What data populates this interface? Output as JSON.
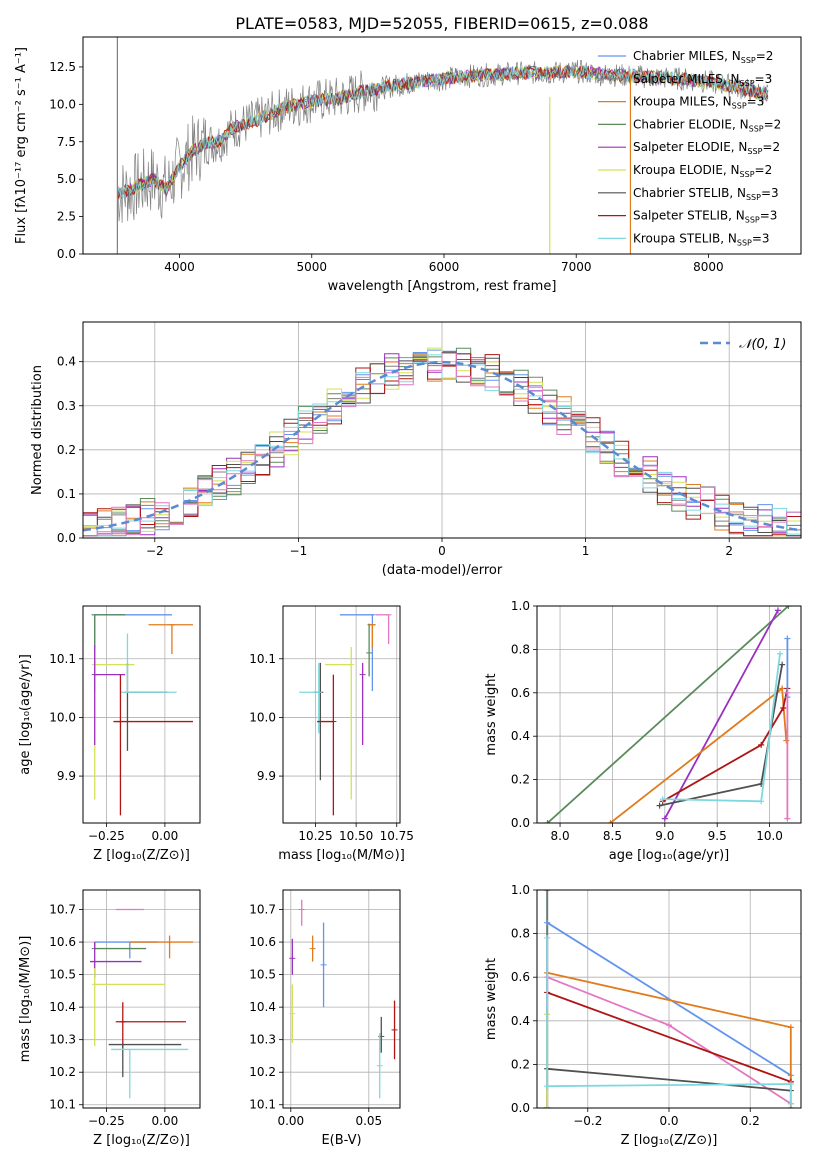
{
  "colors": {
    "chabrier_miles": "#6495ed",
    "salpeter_miles": "#808080",
    "kroupa_miles": "#e07b1e",
    "chabrier_elodie": "#5a8a5a",
    "salpeter_elodie": "#9b30c0",
    "kroupa_elodie": "#d4e05a",
    "chabrier_stelib": "#505050",
    "salpeter_stelib": "#b01515",
    "kroupa_stelib": "#7fd8e0",
    "pink": "#e377c2",
    "normal_curve": "#5b8bd0"
  },
  "chart_data": [
    {
      "id": "spectrum",
      "type": "line",
      "title": "PLATE=0583, MJD=52055, FIBERID=0615, z=0.088",
      "xlabel": "wavelength [Angstrom, rest frame]",
      "ylabel": "Flux [fλ10⁻¹⁷ erg cm⁻² s⁻¹ A⁻¹]",
      "xlim": [
        3270,
        8700
      ],
      "ylim": [
        0,
        14.5
      ],
      "xticks": [
        4000,
        5000,
        6000,
        7000,
        8000
      ],
      "xtick_labels": [
        "4000",
        "5000",
        "6000",
        "7000",
        "8000"
      ],
      "yticks": [
        0,
        2.5,
        5,
        7.5,
        10,
        12.5
      ],
      "ytick_labels": [
        "0.0",
        "2.5",
        "5.0",
        "7.5",
        "10.0",
        "12.5"
      ],
      "legend": "upper-right",
      "series": [
        {
          "name": "Chabrier MILES, N_SSP=2",
          "color": "#6495ed"
        },
        {
          "name": "Salpeter MILES, N_SSP=3",
          "color": "#808080"
        },
        {
          "name": "Kroupa MILES, N_SSP=3",
          "color": "#e07b1e"
        },
        {
          "name": "Chabrier ELODIE, N_SSP=2",
          "color": "#5a8a5a"
        },
        {
          "name": "Salpeter ELODIE, N_SSP=2",
          "color": "#9b30c0"
        },
        {
          "name": "Kroupa ELODIE, N_SSP=2",
          "color": "#d4e05a"
        },
        {
          "name": "Chabrier STELIB, N_SSP=3",
          "color": "#505050"
        },
        {
          "name": "Salpeter STELIB, N_SSP=3",
          "color": "#b01515"
        },
        {
          "name": "Kroupa STELIB, N_SSP=3",
          "color": "#7fd8e0"
        }
      ],
      "continuum": {
        "x": [
          3530,
          3600,
          3700,
          3800,
          3900,
          4000,
          4100,
          4200,
          4300,
          4400,
          4600,
          4800,
          5000,
          5200,
          5400,
          5600,
          5800,
          6000,
          6200,
          6400,
          6600,
          6800,
          7000,
          7200,
          7400,
          7600,
          7800,
          8000,
          8200,
          8450
        ],
        "y": [
          4.0,
          4.2,
          4.6,
          5.0,
          4.3,
          5.8,
          6.9,
          7.4,
          7.5,
          8.4,
          9.0,
          9.8,
          10.2,
          10.4,
          10.9,
          11.2,
          11.5,
          11.7,
          11.9,
          12.0,
          12.1,
          12.1,
          12.2,
          12.0,
          11.9,
          11.8,
          11.7,
          11.5,
          11.2,
          10.6
        ]
      },
      "spikes": [
        {
          "x": 3530,
          "ymin": 0,
          "ymax": 15.5,
          "color": "#808080"
        },
        {
          "x": 6800,
          "ymin": 0,
          "ymax": 10.5,
          "color": "#d4e05a"
        },
        {
          "x": 7410,
          "ymin": 0,
          "ymax": 12.0,
          "color": "#e07b1e"
        }
      ]
    },
    {
      "id": "residuals",
      "type": "line",
      "xlabel": "(data-model)/error",
      "ylabel": "Normed distribution",
      "xlim": [
        -2.5,
        2.5
      ],
      "ylim": [
        0,
        0.49
      ],
      "xticks": [
        -2,
        -1,
        0,
        1,
        2
      ],
      "xtick_labels": [
        "−2",
        "−1",
        "0",
        "1",
        "2"
      ],
      "yticks": [
        0,
        0.1,
        0.2,
        0.3,
        0.4
      ],
      "ytick_labels": [
        "0.0",
        "0.1",
        "0.2",
        "0.3",
        "0.4"
      ],
      "grid": true,
      "legend": "top-right",
      "legend_entry": "𝒩(0, 1)",
      "normal_curve": {
        "mean": 0,
        "sigma": 1,
        "style": "dashed"
      },
      "histogram_bin_width": 0.1
    },
    {
      "id": "age_vs_Z",
      "type": "scatter",
      "xlabel": "Z [log₁₀(Z/Z⊙)]",
      "ylabel": "age  [log₁₀(age/yr)]",
      "xlim": [
        -0.35,
        0.15
      ],
      "ylim": [
        9.82,
        10.19
      ],
      "xticks": [
        -0.25,
        0.0
      ],
      "xtick_labels": [
        "−0.25",
        "0.00"
      ],
      "yticks": [
        9.9,
        10.0,
        10.1
      ],
      "ytick_labels": [
        "9.9",
        "10.0",
        "10.1"
      ],
      "grid": true,
      "points": [
        {
          "x": -0.3,
          "y": 10.175,
          "xerr": [
            0.0,
            0.33
          ],
          "yerr": [
            0.13,
            0.0
          ],
          "color": "#6495ed"
        },
        {
          "x": 0.03,
          "y": 10.158,
          "xerr": [
            0.1,
            0.09
          ],
          "yerr": [
            0.05,
            0.0
          ],
          "color": "#e07b1e"
        },
        {
          "x": -0.3,
          "y": 10.175,
          "xerr": [
            0.0,
            0.13
          ],
          "yerr": [
            0.13,
            0.0
          ],
          "color": "#5a8a5a"
        },
        {
          "x": -0.3,
          "y": 10.09,
          "xerr": [
            0.0,
            0.17
          ],
          "yerr": [
            0.23,
            0.03
          ],
          "color": "#d4e05a"
        },
        {
          "x": -0.3,
          "y": 10.073,
          "xerr": [
            0.0,
            0.13
          ],
          "yerr": [
            0.12,
            0.05
          ],
          "color": "#9b30c0"
        },
        {
          "x": -0.16,
          "y": 10.043,
          "xerr": [
            0.0,
            0.17
          ],
          "yerr": [
            0.1,
            0.05
          ],
          "color": "#505050"
        },
        {
          "x": -0.16,
          "y": 10.043,
          "xerr": [
            0.03,
            0.21
          ],
          "yerr": [
            0.0,
            0.1
          ],
          "color": "#7fd8e0"
        },
        {
          "x": -0.19,
          "y": 9.993,
          "xerr": [
            0.03,
            0.31
          ],
          "yerr": [
            0.16,
            0.08
          ],
          "color": "#b01515"
        }
      ]
    },
    {
      "id": "age_vs_mass",
      "type": "scatter",
      "xlabel": "mass [log₁₀(M/M⊙)]",
      "ylabel": "",
      "xlim": [
        10.05,
        10.77
      ],
      "ylim": [
        9.82,
        10.19
      ],
      "xticks": [
        10.25,
        10.5,
        10.75
      ],
      "xtick_labels": [
        "10.25",
        "10.50",
        "10.75"
      ],
      "yticks": [
        9.9,
        10.0,
        10.1
      ],
      "ytick_labels": [
        "9.9",
        "10.0",
        "10.1"
      ],
      "grid": true,
      "points": [
        {
          "x": 10.6,
          "y": 10.175,
          "xerr": [
            0.2,
            0.01
          ],
          "yerr": [
            0.13,
            0.0
          ],
          "color": "#6495ed"
        },
        {
          "x": 10.6,
          "y": 10.158,
          "xerr": [
            0.03,
            0.02
          ],
          "yerr": [
            0.04,
            0.0
          ],
          "color": "#e07b1e"
        },
        {
          "x": 10.7,
          "y": 10.175,
          "xerr": [
            0.08,
            0.0
          ],
          "yerr": [
            0.05,
            0.0
          ],
          "color": "#e377c2"
        },
        {
          "x": 10.58,
          "y": 10.11,
          "xerr": [
            0.0,
            0.0
          ],
          "yerr": [
            0.04,
            0.05
          ],
          "color": "#5a8a5a"
        },
        {
          "x": 10.54,
          "y": 10.073,
          "xerr": [
            0.0,
            0.0
          ],
          "yerr": [
            0.12,
            0.02
          ],
          "color": "#9b30c0"
        },
        {
          "x": 10.47,
          "y": 10.09,
          "xerr": [
            0.16,
            0.0
          ],
          "yerr": [
            0.23,
            0.03
          ],
          "color": "#d4e05a"
        },
        {
          "x": 10.28,
          "y": 10.043,
          "xerr": [
            0.04,
            0.0
          ],
          "yerr": [
            0.15,
            0.05
          ],
          "color": "#505050"
        },
        {
          "x": 10.27,
          "y": 10.043,
          "xerr": [
            0.12,
            0.0
          ],
          "yerr": [
            0.07,
            0.05
          ],
          "color": "#7fd8e0"
        },
        {
          "x": 10.36,
          "y": 9.993,
          "xerr": [
            0.1,
            0.0
          ],
          "yerr": [
            0.16,
            0.08
          ],
          "color": "#b01515"
        }
      ]
    },
    {
      "id": "massweight_vs_age",
      "type": "line",
      "xlabel": "age  [log₁₀(age/yr)]",
      "ylabel": "mass weight",
      "xlim": [
        7.78,
        10.3
      ],
      "ylim": [
        0,
        1
      ],
      "xticks": [
        8.0,
        8.5,
        9.0,
        9.5,
        10.0
      ],
      "xtick_labels": [
        "8.0",
        "8.5",
        "9.0",
        "9.5",
        "10.0"
      ],
      "yticks": [
        0,
        0.2,
        0.4,
        0.6,
        0.8,
        1.0
      ],
      "ytick_labels": [
        "0.0",
        "0.2",
        "0.4",
        "0.6",
        "0.8",
        "1.0"
      ],
      "grid": true,
      "series": [
        {
          "color": "#5a8a5a",
          "x": [
            7.88,
            10.18
          ],
          "y": [
            0.0,
            1.0
          ]
        },
        {
          "color": "#9b30c0",
          "x": [
            9.0,
            10.08
          ],
          "y": [
            0.02,
            0.98
          ]
        },
        {
          "color": "#e07b1e",
          "x": [
            8.48,
            10.12,
            10.16
          ],
          "y": [
            0.0,
            0.62,
            0.38
          ]
        },
        {
          "color": "#b01515",
          "x": [
            8.98,
            9.92,
            10.13,
            10.17
          ],
          "y": [
            0.1,
            0.36,
            0.53,
            0.62
          ]
        },
        {
          "color": "#505050",
          "x": [
            8.95,
            9.92,
            10.12
          ],
          "y": [
            0.08,
            0.18,
            0.73
          ]
        },
        {
          "color": "#7fd8e0",
          "x": [
            8.98,
            9.92,
            10.1
          ],
          "y": [
            0.11,
            0.1,
            0.78
          ]
        },
        {
          "color": "#6495ed",
          "x": [
            10.17,
            10.17
          ],
          "y": [
            0.58,
            0.85
          ]
        },
        {
          "color": "#e377c2",
          "x": [
            10.17,
            10.17
          ],
          "y": [
            0.02,
            0.6
          ]
        }
      ]
    },
    {
      "id": "mass_vs_Z",
      "type": "scatter",
      "xlabel": "Z [log₁₀(Z/Z⊙)]",
      "ylabel": "mass [log₁₀(M/M⊙)]",
      "xlim": [
        -0.35,
        0.15
      ],
      "ylim": [
        10.09,
        10.76
      ],
      "xticks": [
        -0.25,
        0.0
      ],
      "xtick_labels": [
        "−0.25",
        "0.00"
      ],
      "yticks": [
        10.1,
        10.2,
        10.3,
        10.4,
        10.5,
        10.6,
        10.7
      ],
      "ytick_labels": [
        "10.1",
        "10.2",
        "10.3",
        "10.4",
        "10.5",
        "10.6",
        "10.7"
      ],
      "grid": true,
      "points": [
        {
          "x": -0.15,
          "y": 10.7,
          "xerr": [
            0.06,
            0.06
          ],
          "yerr": [
            0.0,
            0.0
          ],
          "color": "#e377c2"
        },
        {
          "x": -0.15,
          "y": 10.6,
          "xerr": [
            0.15,
            0.12
          ],
          "yerr": [
            0.05,
            0.0
          ],
          "color": "#6495ed"
        },
        {
          "x": 0.02,
          "y": 10.6,
          "xerr": [
            0.17,
            0.1
          ],
          "yerr": [
            0.05,
            0.02
          ],
          "color": "#e07b1e"
        },
        {
          "x": -0.3,
          "y": 10.58,
          "xerr": [
            0.0,
            0.22
          ],
          "yerr": [
            0.0,
            0.02
          ],
          "color": "#5a8a5a"
        },
        {
          "x": -0.3,
          "y": 10.54,
          "xerr": [
            0.02,
            0.2
          ],
          "yerr": [
            0.05,
            0.06
          ],
          "color": "#9b30c0"
        },
        {
          "x": -0.3,
          "y": 10.47,
          "xerr": [
            0.0,
            0.3
          ],
          "yerr": [
            0.19,
            0.05
          ],
          "color": "#d4e05a"
        },
        {
          "x": -0.18,
          "y": 10.355,
          "xerr": [
            0.03,
            0.27
          ],
          "yerr": [
            0.08,
            0.06
          ],
          "color": "#b01515"
        },
        {
          "x": -0.18,
          "y": 10.285,
          "xerr": [
            0.06,
            0.25
          ],
          "yerr": [
            0.1,
            0.0
          ],
          "color": "#505050"
        },
        {
          "x": -0.15,
          "y": 10.27,
          "xerr": [
            0.08,
            0.25
          ],
          "yerr": [
            0.15,
            0.0
          ],
          "color": "#7fd8e0"
        }
      ]
    },
    {
      "id": "mass_vs_ebv",
      "type": "scatter",
      "xlabel": "E(B-V)",
      "ylabel": "",
      "xlim": [
        -0.005,
        0.07
      ],
      "ylim": [
        10.09,
        10.76
      ],
      "xticks": [
        0.0,
        0.05
      ],
      "xtick_labels": [
        "0.00",
        "0.05"
      ],
      "yticks": [
        10.1,
        10.2,
        10.3,
        10.4,
        10.5,
        10.6,
        10.7
      ],
      "ytick_labels": [
        "10.1",
        "10.2",
        "10.3",
        "10.4",
        "10.5",
        "10.6",
        "10.7"
      ],
      "grid": true,
      "points": [
        {
          "x": 0.007,
          "y": 10.7,
          "yerr": [
            0.05,
            0.03
          ],
          "color": "#e377c2"
        },
        {
          "x": 0.014,
          "y": 10.58,
          "yerr": [
            0.04,
            0.04
          ],
          "color": "#e07b1e"
        },
        {
          "x": 0.021,
          "y": 10.53,
          "yerr": [
            0.13,
            0.13
          ],
          "color": "#6495ed"
        },
        {
          "x": 0.001,
          "y": 10.55,
          "yerr": [
            0.05,
            0.06
          ],
          "color": "#9b30c0"
        },
        {
          "x": 0.001,
          "y": 10.38,
          "yerr": [
            0.09,
            0.09
          ],
          "color": "#d4e05a"
        },
        {
          "x": 0.058,
          "y": 10.31,
          "yerr": [
            0.05,
            0.06
          ],
          "color": "#505050"
        },
        {
          "x": 0.057,
          "y": 10.22,
          "yerr": [
            0.1,
            0.1
          ],
          "color": "#7fd8e0"
        },
        {
          "x": 0.0665,
          "y": 10.33,
          "yerr": [
            0.09,
            0.09
          ],
          "color": "#b01515"
        }
      ]
    },
    {
      "id": "massweight_vs_Z",
      "type": "line",
      "xlabel": "Z [log₁₀(Z/Z⊙)]",
      "ylabel": "mass weight",
      "xlim": [
        -0.325,
        0.325
      ],
      "ylim": [
        0,
        1
      ],
      "xticks": [
        -0.2,
        0.0,
        0.2
      ],
      "xtick_labels": [
        "−0.2",
        "0.0",
        "0.2"
      ],
      "yticks": [
        0,
        0.2,
        0.4,
        0.6,
        0.8,
        1.0
      ],
      "ytick_labels": [
        "0.0",
        "0.2",
        "0.4",
        "0.6",
        "0.8",
        "1.0"
      ],
      "grid": true,
      "series": [
        {
          "color": "#9b30c0",
          "x": [
            -0.3,
            -0.3
          ],
          "y": [
            0.0,
            1.0
          ]
        },
        {
          "color": "#5a8a5a",
          "x": [
            -0.3,
            -0.3
          ],
          "y": [
            0.0,
            1.0
          ]
        },
        {
          "color": "#d4e05a",
          "x": [
            -0.3,
            -0.3
          ],
          "y": [
            0.0,
            0.43
          ]
        },
        {
          "color": "#6495ed",
          "x": [
            -0.3,
            0.3,
            0.3
          ],
          "y": [
            0.85,
            0.15,
            0.12
          ]
        },
        {
          "color": "#e07b1e",
          "x": [
            -0.3,
            0.3,
            0.3
          ],
          "y": [
            0.62,
            0.37,
            0.0
          ]
        },
        {
          "color": "#e377c2",
          "x": [
            -0.3,
            0.0,
            0.3
          ],
          "y": [
            0.6,
            0.38,
            0.02
          ]
        },
        {
          "color": "#b01515",
          "x": [
            -0.3,
            0.3
          ],
          "y": [
            0.53,
            0.12
          ]
        },
        {
          "color": "#505050",
          "x": [
            -0.3,
            0.3
          ],
          "y": [
            0.18,
            0.08
          ]
        },
        {
          "color": "#7fd8e0",
          "x": [
            -0.3,
            -0.3,
            0.3,
            0.3
          ],
          "y": [
            0.78,
            0.1,
            0.11,
            0.02
          ]
        }
      ]
    }
  ]
}
